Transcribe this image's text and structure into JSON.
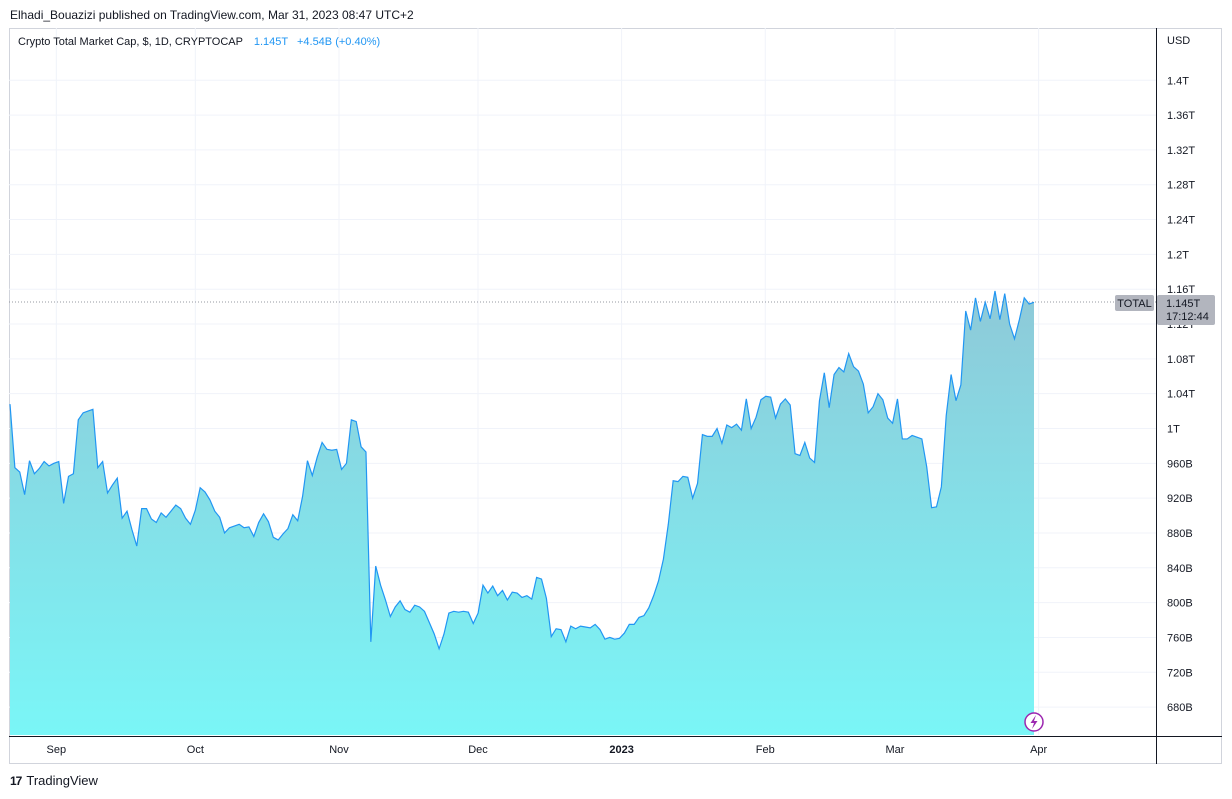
{
  "header": {
    "publisher_line": "Elhadi_Bouazizi published on TradingView.com, Mar 31, 2023 08:47 UTC+2"
  },
  "legend": {
    "symbol_line": "Crypto Total Market Cap, $, 1D, CRYPTOCAP",
    "value": "1.145T",
    "change": "+4.54B (+0.40%)"
  },
  "price_axis": {
    "currency": "USD",
    "labels": [
      "1.4T",
      "1.36T",
      "1.32T",
      "1.28T",
      "1.24T",
      "1.2T",
      "1.16T",
      "1.12T",
      "1.08T",
      "1.04T",
      "1T",
      "960B",
      "920B",
      "880B",
      "840B",
      "800B",
      "760B",
      "720B",
      "680B"
    ]
  },
  "time_axis": {
    "labels": [
      "Sep",
      "Oct",
      "Nov",
      "Dec",
      "2023",
      "Feb",
      "Mar",
      "Apr"
    ]
  },
  "price_tag": {
    "symbol": "TOTAL",
    "price": "1.145T",
    "countdown": "17:12:44"
  },
  "footer": {
    "brand": "TradingView",
    "logo_text": "17"
  },
  "colors": {
    "line": "#2196f3",
    "fill_top": "#8ec9d8",
    "fill_bottom": "#7af6f7",
    "bolt": "#9c27b0"
  },
  "icons": [
    "lightning-icon",
    "tradingview-logo-icon"
  ],
  "chart_data": {
    "type": "area",
    "title": "Crypto Total Market Cap, $, 1D, CRYPTOCAP",
    "ylabel": "USD",
    "ylim": [
      650,
      1430
    ],
    "y_unit": "billion USD",
    "grid": true,
    "x_start": "2022-08-22",
    "x_end": "2023-03-31",
    "series": [
      {
        "values": [
          1028,
          955,
          950,
          924,
          963,
          948,
          954,
          962,
          957,
          960,
          962,
          914,
          945,
          948,
          1010,
          1018,
          1020,
          1022,
          955,
          962,
          926,
          935,
          943,
          897,
          905,
          884,
          865,
          908,
          908,
          896,
          892,
          903,
          898,
          905,
          912,
          908,
          897,
          890,
          906,
          932,
          927,
          918,
          905,
          898,
          880,
          886,
          888,
          890,
          886,
          887,
          876,
          892,
          902,
          893,
          875,
          872,
          879,
          885,
          901,
          894,
          922,
          963,
          946,
          967,
          984,
          976,
          975,
          976,
          953,
          960,
          1010,
          1008,
          979,
          973,
          755,
          842,
          820,
          803,
          784,
          795,
          802,
          792,
          789,
          797,
          795,
          790,
          777,
          764,
          747,
          764,
          788,
          790,
          789,
          790,
          789,
          776,
          788,
          820,
          811,
          819,
          808,
          814,
          803,
          812,
          811,
          806,
          808,
          804,
          829,
          827,
          805,
          761,
          770,
          769,
          755,
          773,
          770,
          773,
          772,
          771,
          775,
          769,
          758,
          760,
          758,
          759,
          765,
          775,
          775,
          783,
          785,
          794,
          808,
          825,
          850,
          890,
          940,
          939,
          945,
          944,
          920,
          937,
          993,
          991,
          991,
          1000,
          983,
          1004,
          1001,
          1005,
          998,
          1034,
          1000,
          1013,
          1033,
          1037,
          1036,
          1012,
          1028,
          1034,
          1027,
          971,
          969,
          984,
          966,
          961,
          1032,
          1064,
          1024,
          1062,
          1070,
          1065,
          1086,
          1071,
          1066,
          1051,
          1018,
          1025,
          1040,
          1033,
          1012,
          1006,
          1034,
          988,
          988,
          992,
          990,
          988,
          956,
          909,
          910,
          933,
          1015,
          1062,
          1032,
          1050,
          1135,
          1113,
          1150,
          1123,
          1145,
          1126,
          1158,
          1125,
          1155,
          1120,
          1103,
          1125,
          1150,
          1143,
          1145
        ]
      }
    ]
  }
}
